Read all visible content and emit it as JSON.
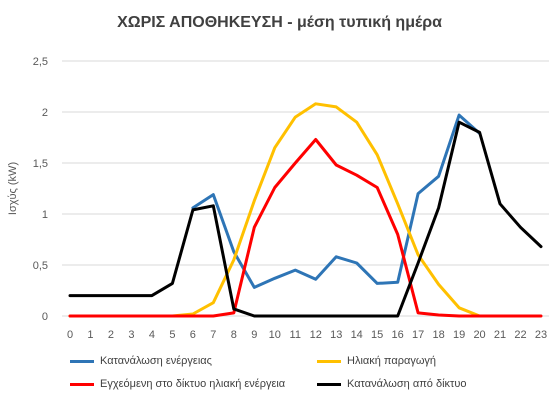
{
  "chart_data": {
    "type": "line",
    "title": "ΧΩΡΙΣ ΑΠΟΘΗΚΕΥΣΗ - μέση τυπική ημέρα",
    "xlabel": "",
    "ylabel": "Ισχύς (kW)",
    "x": [
      "0",
      "1",
      "2",
      "3",
      "4",
      "5",
      "6",
      "7",
      "8",
      "9",
      "10",
      "11",
      "12",
      "13",
      "14",
      "15",
      "16",
      "17",
      "18",
      "19",
      "20",
      "21",
      "22",
      "23"
    ],
    "yticks": [
      "0",
      "0,5",
      "1",
      "1,5",
      "2",
      "2,5"
    ],
    "ylim": [
      0,
      2.5
    ],
    "grid": true,
    "legend_position": "bottom",
    "series": [
      {
        "name": "Κατανάλωση ενέργειας",
        "color": "#2E75B6",
        "values": [
          null,
          null,
          null,
          null,
          null,
          null,
          1.06,
          1.19,
          0.63,
          0.28,
          0.37,
          0.45,
          0.36,
          0.58,
          0.52,
          0.32,
          0.33,
          1.2,
          1.37,
          1.97,
          1.79,
          null,
          null,
          null
        ]
      },
      {
        "name": "Ηλιακή παραγωγή",
        "color": "#FFC000",
        "values": [
          0,
          0,
          0,
          0,
          0,
          0,
          0.02,
          0.13,
          0.55,
          1.13,
          1.65,
          1.95,
          2.08,
          2.05,
          1.9,
          1.58,
          1.1,
          0.6,
          0.31,
          0.08,
          0,
          null,
          null,
          null
        ]
      },
      {
        "name": "Εγχεόμενη στο δίκτυο ηλιακή ενέργεια",
        "color": "#FF0000",
        "values": [
          0,
          0,
          0,
          0,
          0,
          0,
          0,
          0,
          0.03,
          0.87,
          1.26,
          1.5,
          1.73,
          1.48,
          1.38,
          1.26,
          0.8,
          0.03,
          0.01,
          0,
          0,
          0,
          0,
          0
        ]
      },
      {
        "name": "Κατανάλωση από δίκτυο",
        "color": "#000000",
        "values": [
          0.2,
          0.2,
          0.2,
          0.2,
          0.2,
          0.32,
          1.04,
          1.08,
          0.07,
          0,
          0,
          0,
          0,
          0,
          0,
          0,
          0,
          0.52,
          1.06,
          1.9,
          1.8,
          1.1,
          0.87,
          0.68
        ]
      }
    ]
  }
}
